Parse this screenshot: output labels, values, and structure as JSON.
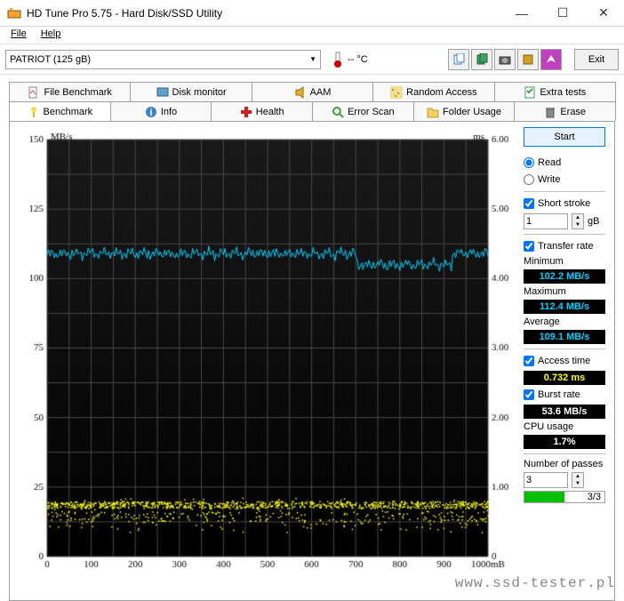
{
  "window": {
    "title": "HD Tune Pro 5.75 - Hard Disk/SSD Utility",
    "minimize": "—",
    "maximize": "☐",
    "close": "✕"
  },
  "menu": {
    "file": "File",
    "help": "Help"
  },
  "toolbar": {
    "device": "PATRIOT (125 gB)",
    "temp": "-- °C",
    "exit": "Exit"
  },
  "tabs_row1": [
    {
      "label": "File Benchmark"
    },
    {
      "label": "Disk monitor"
    },
    {
      "label": "AAM"
    },
    {
      "label": "Random Access"
    },
    {
      "label": "Extra tests"
    }
  ],
  "tabs_row2": [
    {
      "label": "Benchmark",
      "active": true
    },
    {
      "label": "Info"
    },
    {
      "label": "Health"
    },
    {
      "label": "Error Scan"
    },
    {
      "label": "Folder Usage"
    },
    {
      "label": "Erase"
    }
  ],
  "chart": {
    "y_left_label": "MB/s",
    "y_right_label": "ms",
    "x_unit": "mB",
    "y_left_max": 150,
    "y_left_ticks": [
      150,
      125,
      100,
      75,
      50,
      25,
      0
    ],
    "y_right_max": 6.0,
    "y_right_ticks": [
      "6.00",
      "5.00",
      "4.00",
      "3.00",
      "2.00",
      "1.00",
      "0"
    ],
    "x_max": 1000,
    "x_ticks": [
      0,
      100,
      200,
      300,
      400,
      500,
      600,
      700,
      800,
      900,
      "1000mB"
    ],
    "bg_top": "#1a1a1a",
    "bg_bottom": "#000000",
    "grid_color": "#484848",
    "transfer_color": "#00d0ff",
    "access_color": "#ffff00",
    "transfer_series_avg": 109,
    "transfer_series_min": 102,
    "transfer_series_max": 112,
    "access_series_avg": 0.73,
    "access_series_jitter": 0.3
  },
  "side": {
    "start": "Start",
    "read": "Read",
    "write": "Write",
    "short_stroke": "Short stroke",
    "short_stroke_val": "1",
    "short_stroke_unit": "gB",
    "transfer_rate": "Transfer rate",
    "minimum": "Minimum",
    "min_val": "102.2 MB/s",
    "maximum": "Maximum",
    "max_val": "112.4 MB/s",
    "average": "Average",
    "avg_val": "109.1 MB/s",
    "access_time": "Access time",
    "access_val": "0.732 ms",
    "burst_rate": "Burst rate",
    "burst_val": "53.6 MB/s",
    "cpu_usage": "CPU usage",
    "cpu_val": "1.7%",
    "passes": "Number of passes",
    "passes_val": "3",
    "passes_done": "3/3"
  },
  "watermark": "www.ssd-tester.pl"
}
